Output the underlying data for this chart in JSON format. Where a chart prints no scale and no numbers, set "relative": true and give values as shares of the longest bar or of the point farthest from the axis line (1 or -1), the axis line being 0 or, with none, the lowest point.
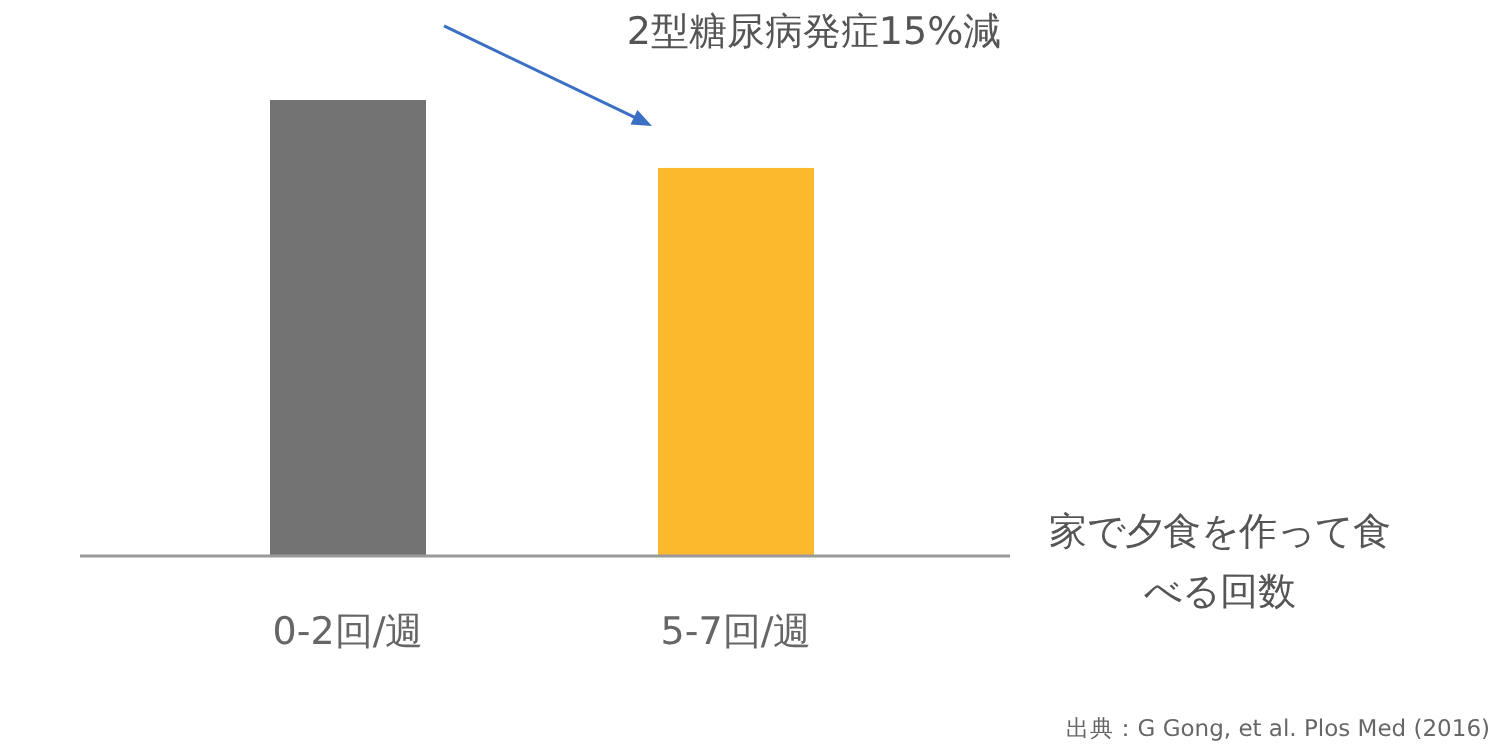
{
  "chart_data": {
    "type": "bar",
    "relative": true,
    "categories": [
      "0-2回/週",
      "5-7回/週"
    ],
    "series": [
      {
        "colors": [
          "#737373",
          "#fdb92e"
        ],
        "values": [
          1,
          0.851
        ]
      }
    ],
    "xlabel": "家で夕食を作って食べる回数",
    "annotations": [
      {
        "text": "2型糖尿病発症15%減",
        "x": "5-7回/週",
        "y": 0.851
      },
      "出典：G Gong, et al. Plos Med (2016)"
    ]
  }
}
